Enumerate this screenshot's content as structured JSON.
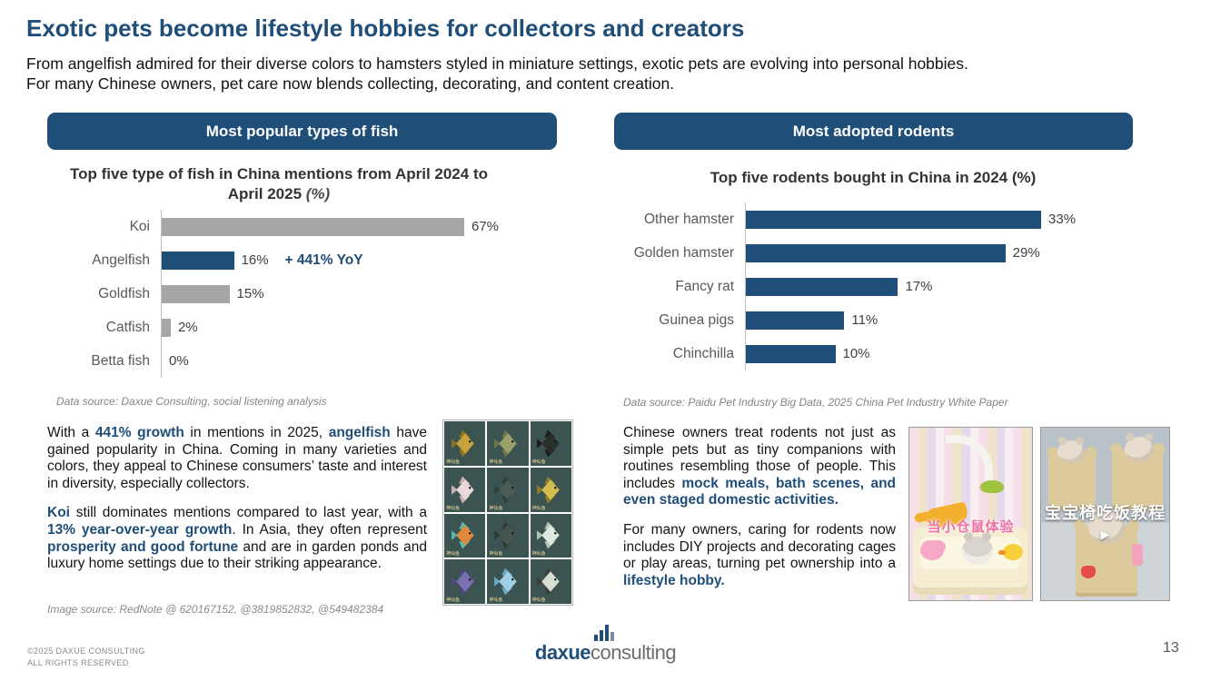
{
  "accent_color": "#1F4E79",
  "bar_gray": "#A6A6A6",
  "header": {
    "title": "Exotic pets become lifestyle hobbies for collectors and creators",
    "subtitle_line1": "From angelfish admired for their diverse colors to hamsters styled in miniature settings, exotic pets are evolving into personal hobbies.",
    "subtitle_line2": "For many Chinese owners, pet care now blends collecting, decorating, and content creation."
  },
  "fish_panel": {
    "header": "Most popular types of fish"
  },
  "rodent_panel": {
    "header": "Most adopted rodents"
  },
  "chart_data": [
    {
      "type": "bar",
      "orientation": "horizontal",
      "title": "Top five type of fish in China mentions from April 2024 to April 2025",
      "unit": "(%)",
      "categories": [
        "Koi",
        "Angelfish",
        "Goldfish",
        "Catfish",
        "Betta fish"
      ],
      "values": [
        67,
        16,
        15,
        2,
        0
      ],
      "value_labels": [
        "67%",
        "16%",
        "15%",
        "2%",
        "0%"
      ],
      "bar_colors": [
        "#A6A6A6",
        "#1F4E79",
        "#A6A6A6",
        "#A6A6A6",
        "#A6A6A6"
      ],
      "annotations": [
        {
          "category": "Angelfish",
          "text": "+ 441% YoY"
        }
      ],
      "xlim": [
        0,
        70
      ],
      "grid": false,
      "legend": false,
      "source": "Data source: Daxue Consulting, social listening analysis"
    },
    {
      "type": "bar",
      "orientation": "horizontal",
      "title": "Top five rodents bought in China in 2024 (%)",
      "unit": "",
      "categories": [
        "Other hamster",
        "Golden hamster",
        "Fancy rat",
        "Guinea pigs",
        "Chinchilla"
      ],
      "values": [
        33,
        29,
        17,
        11,
        10
      ],
      "value_labels": [
        "33%",
        "29%",
        "17%",
        "11%",
        "10%"
      ],
      "bar_colors": [
        "#1F4E79",
        "#1F4E79",
        "#1F4E79",
        "#1F4E79",
        "#1F4E79"
      ],
      "annotations": [],
      "xlim": [
        0,
        34
      ],
      "grid": false,
      "legend": false,
      "source": "Data source: Paidu Pet Industry Big Data, 2025 China Pet Industry White Paper"
    }
  ],
  "left_body": {
    "paragraphs": [
      [
        {
          "t": "With a ",
          "b": false
        },
        {
          "t": "441% growth",
          "b": true
        },
        {
          "t": " in mentions in 2025, ",
          "b": false
        },
        {
          "t": "angelfish",
          "b": true
        },
        {
          "t": " have gained popularity in China. Coming in many varieties and colors, they appeal to Chinese consumers’ taste and interest in diversity, especially collectors.",
          "b": false
        }
      ],
      [
        {
          "t": "Koi",
          "b": true
        },
        {
          "t": " still dominates mentions compared to last year, with a ",
          "b": false
        },
        {
          "t": "13% year-over-year growth",
          "b": true
        },
        {
          "t": ". In Asia, they often represent ",
          "b": false
        },
        {
          "t": "prosperity and good fortune",
          "b": true
        },
        {
          "t": " and are in garden ponds and luxury home settings due to their striking appearance.",
          "b": false
        }
      ]
    ],
    "image_source": "Image source: RedNote @ 620167152, @3819852832, @549482384"
  },
  "right_body": {
    "paragraphs": [
      [
        {
          "t": "Chinese owners treat rodents not just as simple pets but as tiny companions with routines resembling those of people. This includes ",
          "b": false
        },
        {
          "t": "mock meals, bath scenes, and even staged domestic activities.",
          "b": true
        }
      ],
      [
        {
          "t": "For many owners, caring for rodents now includes DIY projects and decorating cages or play areas, turning pet ownership into a ",
          "b": false
        },
        {
          "t": "lifestyle hobby.",
          "b": true
        }
      ]
    ]
  },
  "fish_grid": {
    "cells": [
      {
        "body": "#c8a23a",
        "fin": "#8a7222",
        "label": "神仙鱼"
      },
      {
        "body": "#9aa06a",
        "fin": "#6f744a",
        "label": "神仙鱼"
      },
      {
        "body": "#2b2f2c",
        "fin": "#1a1d1b",
        "label": "神仙鱼"
      },
      {
        "body": "#ead9da",
        "fin": "#cdaeb2",
        "label": "神仙鱼"
      },
      {
        "body": "#4a5a54",
        "fin": "#32403b",
        "label": "神仙鱼"
      },
      {
        "body": "#d2bd4e",
        "fin": "#8c7c2c",
        "label": "神仙鱼"
      },
      {
        "body": "#e0893c",
        "fin": "#57b8b0",
        "label": "神仙鱼"
      },
      {
        "body": "#46564f",
        "fin": "#2e3b36",
        "label": "神仙鱼"
      },
      {
        "body": "#dfe8df",
        "fin": "#b2c4b6",
        "label": "神仙鱼"
      },
      {
        "body": "#7a6fb0",
        "fin": "#50477e",
        "label": "神仙鱼"
      },
      {
        "body": "#9fd0e8",
        "fin": "#6ba6c4",
        "label": "神仙鱼"
      },
      {
        "body": "#d8ddd2",
        "fin": "#3a3f3a",
        "label": "神仙鱼"
      }
    ]
  },
  "photos": {
    "bath_caption": "当小仓鼠体验",
    "chairs_caption": "宝宝椅吃饭教程",
    "play_glyph": "▶"
  },
  "footer": {
    "copyright_line1": "©2025 DAXUE CONSULTING",
    "copyright_line2": "ALL RIGHTS RESERVED",
    "logo_daxue": "daxue",
    "logo_consulting": "consulting",
    "page_number": "13"
  }
}
